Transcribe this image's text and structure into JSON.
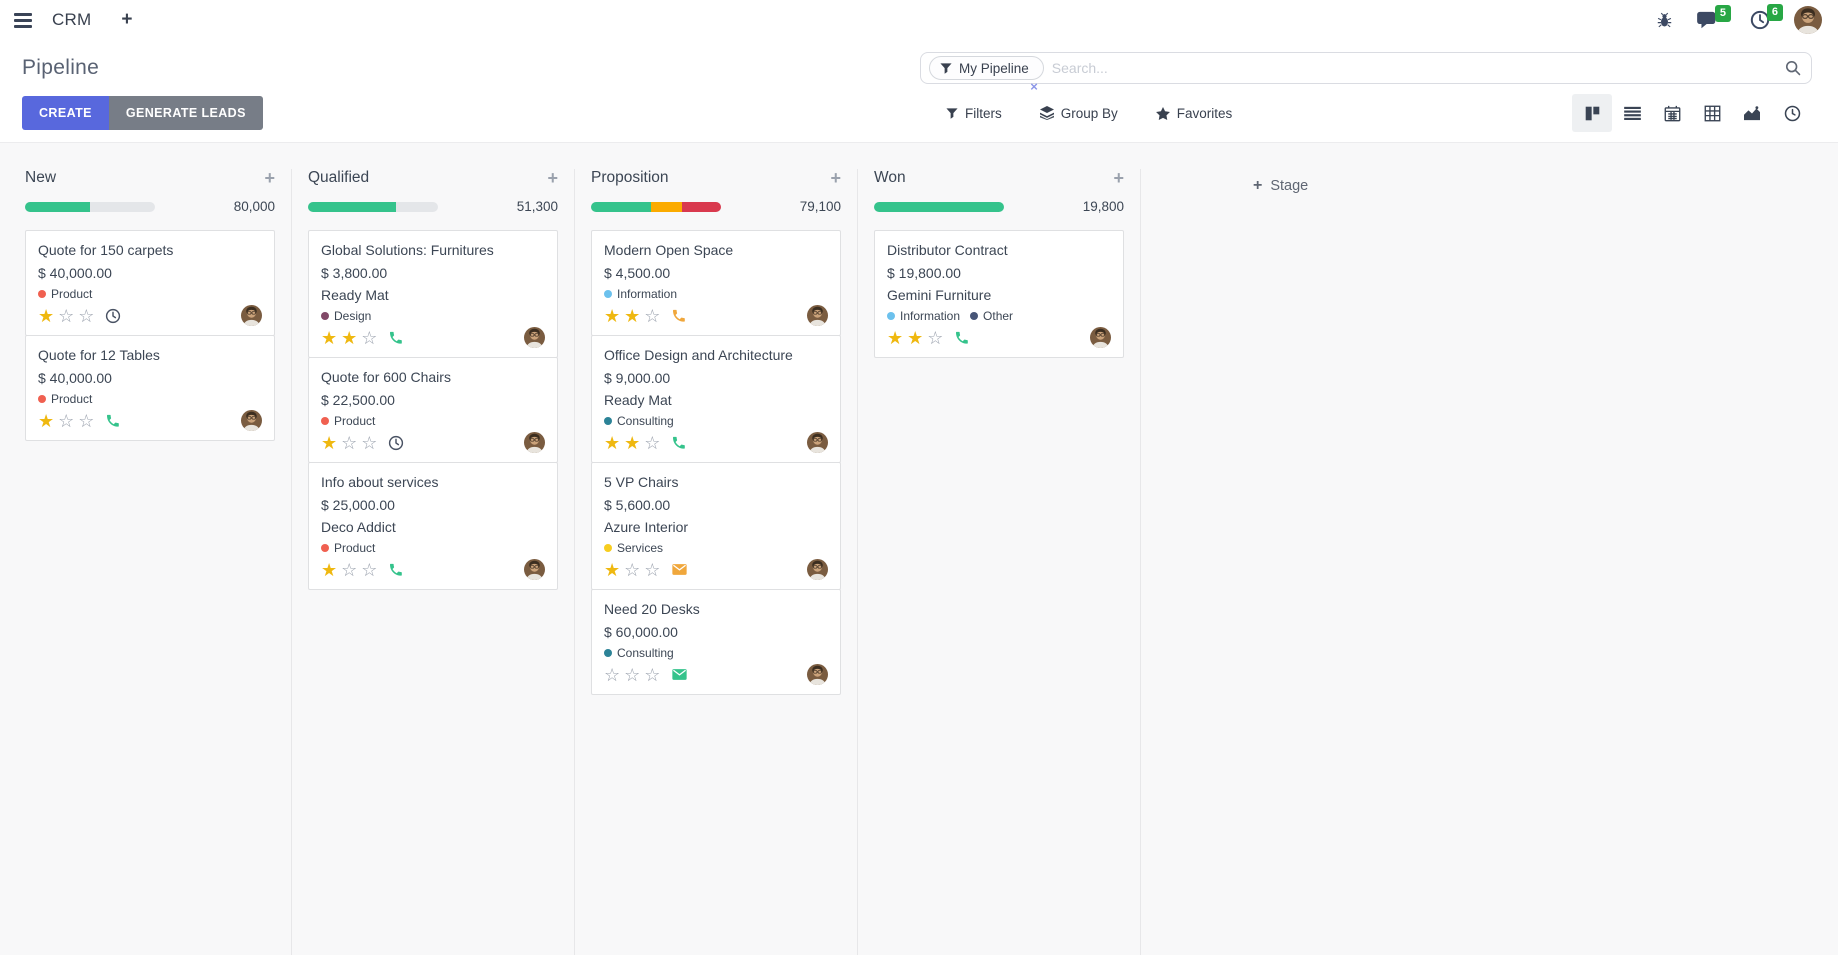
{
  "topbar": {
    "app_name": "CRM",
    "new_tab_label": "+",
    "systray": {
      "messages_count": "5",
      "activities_count": "6"
    },
    "icons": [
      "menu-icon",
      "bug-icon",
      "messages-icon",
      "activities-clock-icon",
      "user-avatar"
    ]
  },
  "control_panel": {
    "title": "Pipeline",
    "create_label": "CREATE",
    "generate_label": "GENERATE LEADS",
    "search": {
      "facet_label": "My Pipeline",
      "facet_remove": "×",
      "placeholder": "Search...",
      "icons": [
        "filter-funnel-icon",
        "search-icon"
      ]
    },
    "menus": {
      "filters": "Filters",
      "group_by": "Group By",
      "favorites": "Favorites"
    },
    "view_switcher": [
      "kanban",
      "list",
      "calendar",
      "pivot",
      "graph",
      "activity"
    ],
    "active_view": "kanban"
  },
  "board": {
    "add_stage_plus": "+",
    "add_stage_label": "Stage",
    "columns": [
      {
        "name": "New",
        "total": "80,000",
        "progress": [
          {
            "color": "green",
            "pct": 50
          }
        ],
        "cards": [
          {
            "title": "Quote for 150 carpets",
            "amount": "$ 40,000.00",
            "partner": "",
            "tags": [
              {
                "label": "Product",
                "color": "#f06050"
              }
            ],
            "stars": 1,
            "activity": "clock"
          },
          {
            "title": "Quote for 12 Tables",
            "amount": "$ 40,000.00",
            "partner": "",
            "tags": [
              {
                "label": "Product",
                "color": "#f06050"
              }
            ],
            "stars": 1,
            "activity": "phone-green"
          }
        ]
      },
      {
        "name": "Qualified",
        "total": "51,300",
        "progress": [
          {
            "color": "green",
            "pct": 68
          }
        ],
        "cards": [
          {
            "title": "Global Solutions: Furnitures",
            "amount": "$ 3,800.00",
            "partner": "Ready Mat",
            "tags": [
              {
                "label": "Design",
                "color": "#814968"
              }
            ],
            "stars": 2,
            "activity": "phone-green"
          },
          {
            "title": "Quote for 600 Chairs",
            "amount": "$ 22,500.00",
            "partner": "",
            "tags": [
              {
                "label": "Product",
                "color": "#f06050"
              }
            ],
            "stars": 1,
            "activity": "clock"
          },
          {
            "title": "Info about services",
            "amount": "$ 25,000.00",
            "partner": "Deco Addict",
            "tags": [
              {
                "label": "Product",
                "color": "#f06050"
              }
            ],
            "stars": 1,
            "activity": "phone-green"
          }
        ]
      },
      {
        "name": "Proposition",
        "total": "79,100",
        "progress": [
          {
            "color": "green",
            "pct": 46
          },
          {
            "color": "yellow",
            "pct": 24
          },
          {
            "color": "red",
            "pct": 30
          }
        ],
        "cards": [
          {
            "title": "Modern Open Space",
            "amount": "$ 4,500.00",
            "partner": "",
            "tags": [
              {
                "label": "Information",
                "color": "#6cc1ed"
              }
            ],
            "stars": 2,
            "activity": "phone-orange"
          },
          {
            "title": "Office Design and Architecture",
            "amount": "$ 9,000.00",
            "partner": "Ready Mat",
            "tags": [
              {
                "label": "Consulting",
                "color": "#2c8397"
              }
            ],
            "stars": 2,
            "activity": "phone-green"
          },
          {
            "title": "5 VP Chairs",
            "amount": "$ 5,600.00",
            "partner": "Azure Interior",
            "tags": [
              {
                "label": "Services",
                "color": "#f7cd1f"
              }
            ],
            "stars": 1,
            "activity": "mail-orange"
          },
          {
            "title": "Need 20 Desks",
            "amount": "$ 60,000.00",
            "partner": "",
            "tags": [
              {
                "label": "Consulting",
                "color": "#2c8397"
              }
            ],
            "stars": 0,
            "activity": "mail-green"
          }
        ]
      },
      {
        "name": "Won",
        "total": "19,800",
        "progress": [
          {
            "color": "green",
            "pct": 100
          }
        ],
        "cards": [
          {
            "title": "Distributor Contract",
            "amount": "$ 19,800.00",
            "partner": "Gemini Furniture",
            "tags": [
              {
                "label": "Information",
                "color": "#6cc1ed"
              },
              {
                "label": "Other",
                "color": "#475577"
              }
            ],
            "stars": 2,
            "activity": "phone-green"
          }
        ]
      }
    ]
  },
  "colors": {
    "accent_primary": "#5868dd",
    "button_secondary": "#777d87",
    "badge_green": "#28a745",
    "progress_green": "#35c38c",
    "progress_yellow": "#fbab00",
    "progress_red": "#d9394e",
    "star_gold": "#efb810",
    "activity_orange": "#f0a73c",
    "facet_close_blue": "#8b96e8",
    "content_background": "#f8f8f9"
  }
}
